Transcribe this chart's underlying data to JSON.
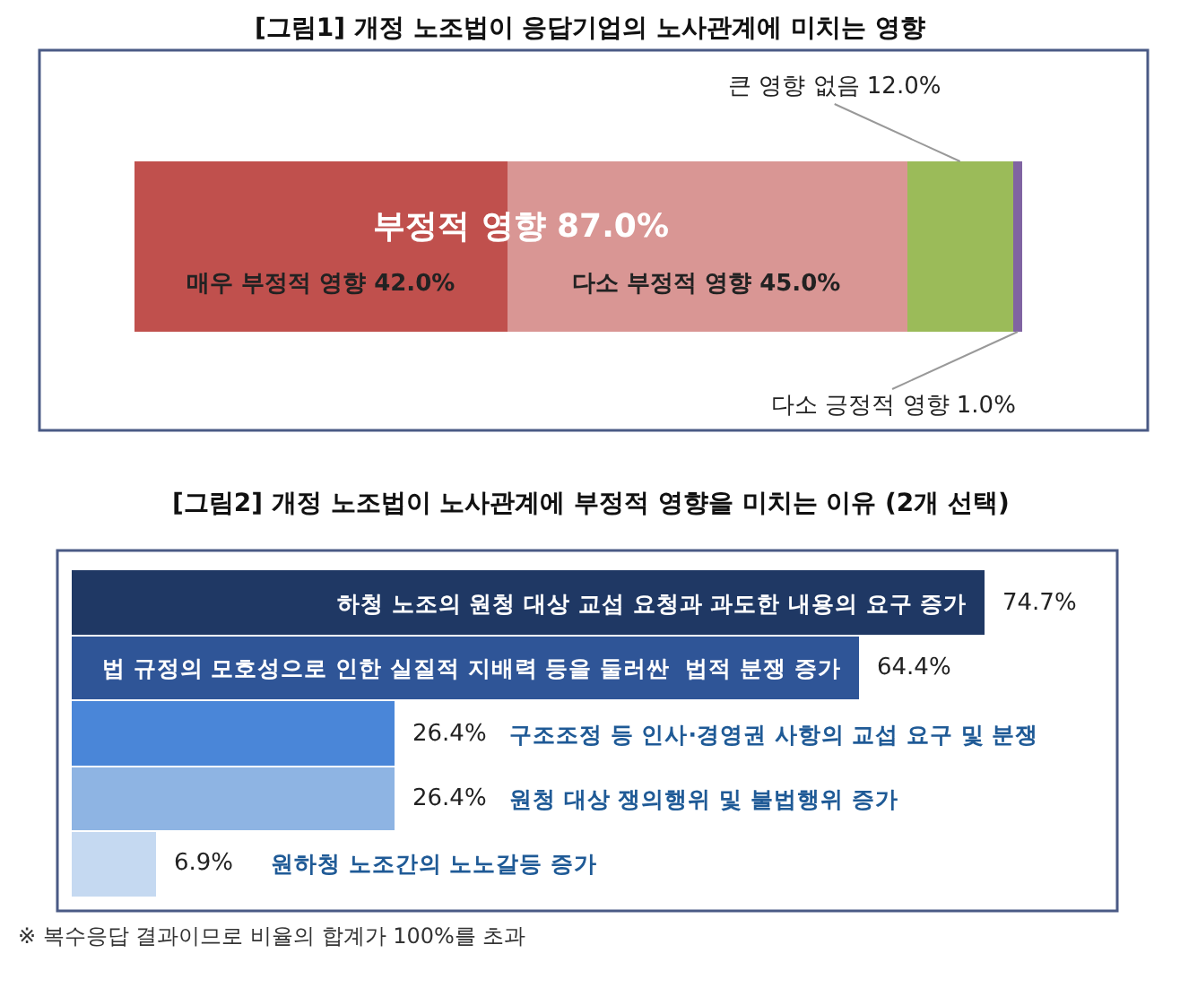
{
  "chart_data": [
    {
      "type": "bar",
      "orientation": "horizontal",
      "stacked": true,
      "title": "[그림1] 개정 노조법이 응답기업의 노사관계에 미치는 영향",
      "categories": [
        null
      ],
      "series": [
        {
          "color": "#c0504d",
          "values": [
            42.0
          ],
          "value_labels": [
            "매우 부정적 영향 42.0%"
          ]
        },
        {
          "color": "#d99694",
          "values": [
            45.0
          ],
          "value_labels": [
            "다소 부정적 영향 45.0%"
          ]
        },
        {
          "color": "#9bbb59",
          "values": [
            12.0
          ],
          "value_labels": [
            "큰 영향 없음 12.0%"
          ]
        },
        {
          "color": "#8064a2",
          "values": [
            1.0
          ],
          "value_labels": [
            "다소 긍정적 영향 1.0%"
          ]
        }
      ],
      "annotations": [
        "부정적 영향 87.0%"
      ]
    },
    {
      "type": "bar",
      "orientation": "horizontal",
      "title": "[그림2] 개정 노조법이 노사관계에 부정적 영향을 미치는 이유 (2개 선택)",
      "categories": [
        "하청 노조의 원청 대상 교섭 요청과 과도한 내용의 요구 증가",
        "법 규정의 모호성으로 인한 실질적 지배력 등을 둘러싼  법적 분쟁 증가",
        "구조조정 등 인사·경영권 사항의 교섭 요구 및 분쟁",
        "원청 대상 쟁의행위 및 불법행위 증가",
        "원하청 노조간의 노노갈등 증가"
      ],
      "values": [
        74.7,
        64.4,
        26.4,
        26.4,
        6.9
      ],
      "colors": [
        "#1f3864",
        "#2f5597",
        "#4a86d8",
        "#8eb4e3",
        "#c5d9f1"
      ],
      "value_labels": [
        "74.7%",
        "64.4%",
        "26.4%",
        "26.4%",
        "6.9%"
      ],
      "annotations": [
        "※ 복수응답 결과이므로 비율의 합계가 100%를 초과"
      ]
    }
  ]
}
